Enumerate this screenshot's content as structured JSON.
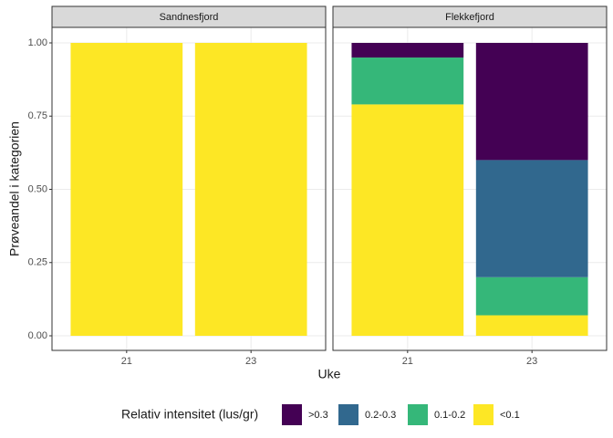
{
  "chart_data": {
    "type": "bar",
    "xlabel": "Uke",
    "ylabel": "Prøveandel i kategorien",
    "legend_title": "Relativ intensitet (lus/gr)",
    "legend_position": "bottom",
    "ylim": [
      0,
      1
    ],
    "yticks": [
      {
        "value": 0,
        "label": "0.00"
      },
      {
        "value": 0.25,
        "label": "0.25"
      },
      {
        "value": 0.5,
        "label": "0.50"
      },
      {
        "value": 0.75,
        "label": "0.75"
      },
      {
        "value": 1,
        "label": "1.00"
      }
    ],
    "grid": true,
    "series": [
      {
        "name": "<0.1",
        "color": "#fde725"
      },
      {
        "name": "0.1-0.2",
        "color": "#35b779"
      },
      {
        "name": "0.2-0.3",
        "color": "#31688e"
      },
      {
        "name": ">0.3",
        "color": "#440154"
      }
    ],
    "panels": [
      {
        "title": "Sandnesfjord",
        "categories": [
          "21",
          "23"
        ],
        "series": [
          {
            "values": [
              1,
              1
            ]
          },
          {
            "values": [
              0,
              0
            ]
          },
          {
            "values": [
              0,
              0
            ]
          },
          {
            "values": [
              0,
              0
            ]
          }
        ]
      },
      {
        "title": "Flekkefjord",
        "categories": [
          "21",
          "23"
        ],
        "series": [
          {
            "values": [
              0.79,
              0.07
            ]
          },
          {
            "values": [
              0.16,
              0.13
            ]
          },
          {
            "values": [
              0,
              0.4
            ]
          },
          {
            "values": [
              0.05,
              0.4
            ]
          }
        ]
      }
    ]
  }
}
